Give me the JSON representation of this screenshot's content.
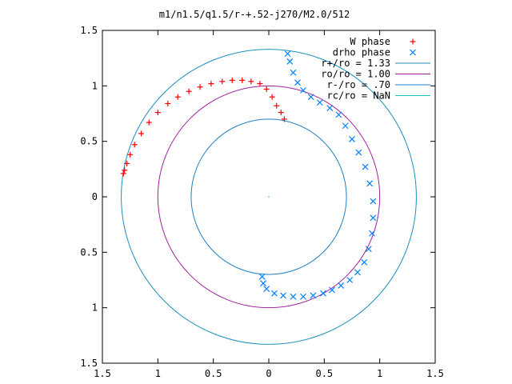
{
  "chart_data": {
    "type": "scatter",
    "title": "m1/n1.5/q1.5/r-+.52-j270/M2.0/512",
    "xlim": [
      -1.5,
      1.5
    ],
    "ylim": [
      -1.5,
      1.5
    ],
    "x_ticks": [
      {
        "value": -1.5,
        "label": "1.5"
      },
      {
        "value": -1.0,
        "label": "1"
      },
      {
        "value": -0.5,
        "label": "0.5"
      },
      {
        "value": 0.0,
        "label": "0"
      },
      {
        "value": 0.5,
        "label": "0.5"
      },
      {
        "value": 1.0,
        "label": "1"
      },
      {
        "value": 1.5,
        "label": "1.5"
      }
    ],
    "y_ticks": [
      {
        "value": 1.5,
        "label": "1.5"
      },
      {
        "value": 1.0,
        "label": "1"
      },
      {
        "value": 0.5,
        "label": "0.5"
      },
      {
        "value": 0.0,
        "label": "0"
      },
      {
        "value": -0.5,
        "label": "0.5"
      },
      {
        "value": -1.0,
        "label": "1"
      },
      {
        "value": -1.5,
        "label": "1.5"
      }
    ],
    "grid": false,
    "legend_position": "top-right",
    "series": [
      {
        "name": "W phase",
        "marker": "plus",
        "color": "#ff0000",
        "x": [
          0.14,
          0.11,
          0.07,
          0.03,
          -0.02,
          -0.08,
          -0.16,
          -0.24,
          -0.33,
          -0.42,
          -0.52,
          -0.62,
          -0.72,
          -0.82,
          -0.91,
          -1.0,
          -1.08,
          -1.15,
          -1.21,
          -1.25,
          -1.28,
          -1.3,
          -1.31
        ],
        "y": [
          0.7,
          0.76,
          0.82,
          0.9,
          0.97,
          1.02,
          1.04,
          1.05,
          1.05,
          1.04,
          1.02,
          0.99,
          0.95,
          0.9,
          0.84,
          0.76,
          0.67,
          0.57,
          0.47,
          0.38,
          0.3,
          0.24,
          0.21
        ]
      },
      {
        "name": "drho phase",
        "marker": "cross",
        "color": "#0080ff",
        "x": [
          0.17,
          0.19,
          0.22,
          0.26,
          0.31,
          0.38,
          0.46,
          0.55,
          0.63,
          0.69,
          0.75,
          0.81,
          0.87,
          0.91,
          0.94,
          0.94,
          0.93,
          0.9,
          0.86,
          0.8,
          0.73,
          0.65,
          0.57,
          0.49,
          0.4,
          0.31,
          0.22,
          0.13,
          0.05,
          -0.02,
          -0.05,
          -0.06
        ],
        "y": [
          1.29,
          1.22,
          1.12,
          1.03,
          0.96,
          0.9,
          0.85,
          0.8,
          0.74,
          0.64,
          0.52,
          0.4,
          0.27,
          0.12,
          -0.04,
          -0.19,
          -0.33,
          -0.47,
          -0.59,
          -0.68,
          -0.75,
          -0.8,
          -0.84,
          -0.87,
          -0.89,
          -0.9,
          -0.9,
          -0.89,
          -0.87,
          -0.83,
          -0.78,
          -0.72
        ]
      }
    ],
    "circles": [
      {
        "name": "r+/ro = 1.33",
        "radius": 1.33,
        "color": "#1a8fbf"
      },
      {
        "name": "ro/ro = 1.00",
        "radius": 1.0,
        "color": "#a020a0"
      },
      {
        "name": "r-/ro = .70",
        "radius": 0.7,
        "color": "#2080c0"
      },
      {
        "name": "rc/ro = NaN",
        "radius": null,
        "color": "#20c0c0"
      }
    ]
  }
}
